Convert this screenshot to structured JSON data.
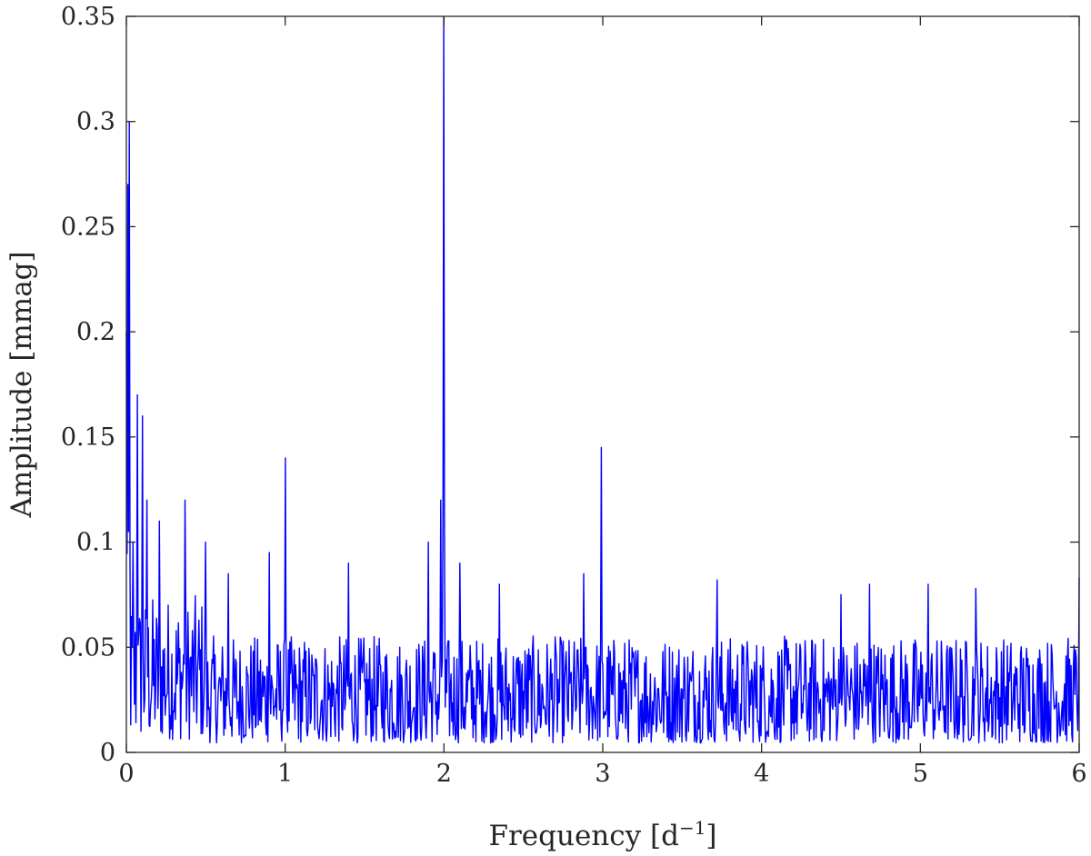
{
  "chart_data": {
    "type": "line",
    "title": "",
    "xlabel": "Frequency [d",
    "xlabel_superscript": "−1",
    "xlabel_suffix": "]",
    "ylabel": "Amplitude [mmag]",
    "xlim": [
      0,
      6
    ],
    "ylim": [
      0,
      0.35
    ],
    "grid": false,
    "x_ticks": [
      0,
      1,
      2,
      3,
      4,
      5,
      6
    ],
    "x_tick_labels": [
      "0",
      "1",
      "2",
      "3",
      "4",
      "5",
      "6"
    ],
    "y_ticks": [
      0,
      0.05,
      0.1,
      0.15,
      0.2,
      0.25,
      0.3,
      0.35
    ],
    "y_tick_labels": [
      "0",
      "0.05",
      "0.1",
      "0.15",
      "0.2",
      "0.25",
      "0.3",
      "0.35"
    ],
    "series_color": "#0000ff",
    "series": [
      {
        "peaks": [
          {
            "x": 0.0,
            "y": 0.2
          },
          {
            "x": 0.01,
            "y": 0.27
          },
          {
            "x": 0.02,
            "y": 0.3
          },
          {
            "x": 0.04,
            "y": 0.1
          },
          {
            "x": 0.07,
            "y": 0.17
          },
          {
            "x": 0.1,
            "y": 0.16
          },
          {
            "x": 0.13,
            "y": 0.12
          },
          {
            "x": 0.21,
            "y": 0.11
          },
          {
            "x": 0.37,
            "y": 0.12
          },
          {
            "x": 0.5,
            "y": 0.1
          },
          {
            "x": 0.64,
            "y": 0.085
          },
          {
            "x": 0.9,
            "y": 0.095
          },
          {
            "x": 1.0,
            "y": 0.14
          },
          {
            "x": 1.4,
            "y": 0.09
          },
          {
            "x": 1.9,
            "y": 0.1
          },
          {
            "x": 1.98,
            "y": 0.12
          },
          {
            "x": 2.0,
            "y": 0.35
          },
          {
            "x": 2.1,
            "y": 0.09
          },
          {
            "x": 2.35,
            "y": 0.08
          },
          {
            "x": 2.88,
            "y": 0.085
          },
          {
            "x": 2.99,
            "y": 0.145
          },
          {
            "x": 3.72,
            "y": 0.082
          },
          {
            "x": 4.5,
            "y": 0.075
          },
          {
            "x": 4.68,
            "y": 0.08
          },
          {
            "x": 5.05,
            "y": 0.08
          },
          {
            "x": 5.35,
            "y": 0.078
          },
          {
            "x": 6.0,
            "y": 0.083
          }
        ],
        "noise_level": 0.03
      }
    ]
  }
}
